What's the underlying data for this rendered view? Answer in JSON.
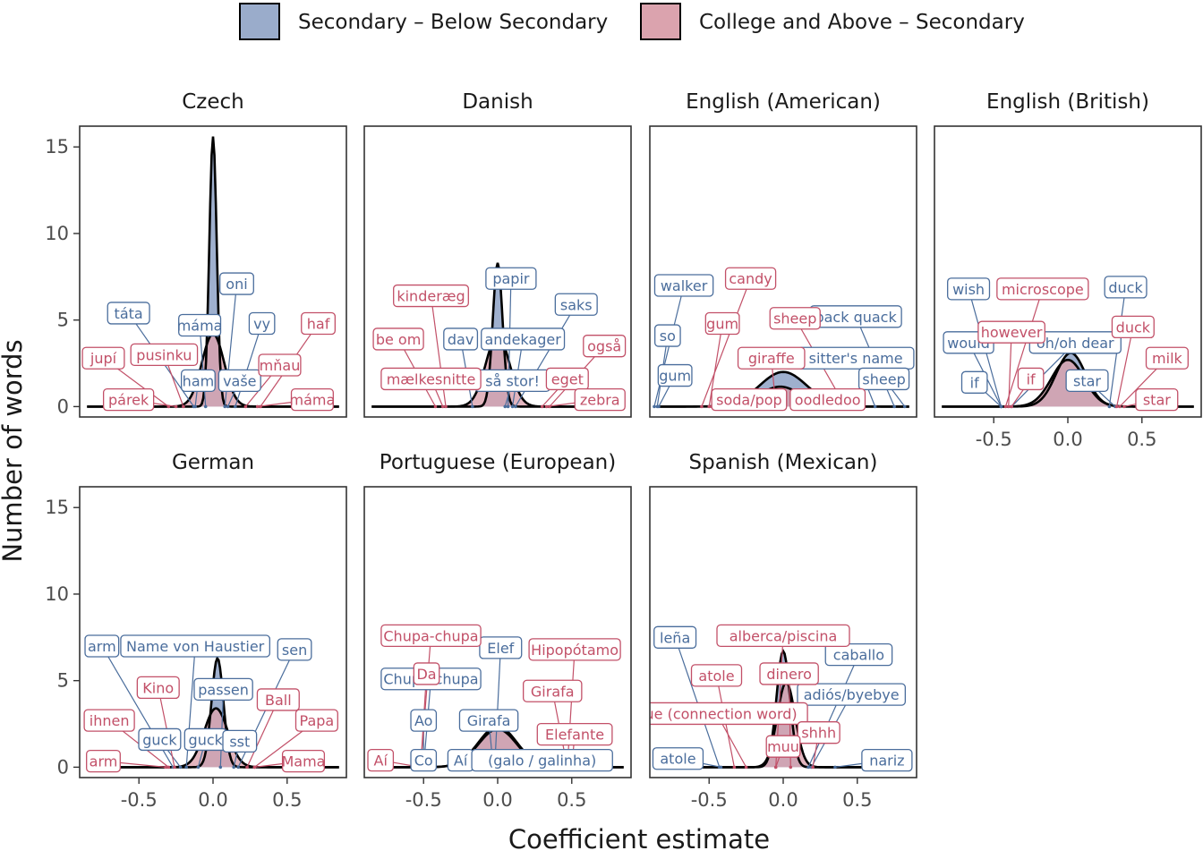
{
  "chart_data": {
    "type": "area",
    "xlabel": "Coefficient estimate",
    "ylabel": "Number of words",
    "xlim": [
      -0.9,
      0.9
    ],
    "ylim": [
      -0.6,
      16.2
    ],
    "xticks": [
      -0.5,
      0.0,
      0.5
    ],
    "xtick_labels": [
      "-0.5",
      "0.0",
      "0.5"
    ],
    "yticks": [
      0,
      5,
      10,
      15
    ],
    "ytick_labels": [
      "0",
      "5",
      "10",
      "15"
    ],
    "legend": {
      "position": "top",
      "entries": [
        {
          "label": "Secondary – Below Secondary",
          "color": "#9aaccb"
        },
        {
          "label": "College and Above – Secondary",
          "color": "#dba3ae"
        }
      ]
    },
    "colors": {
      "secondary": "#4a6d9c",
      "college": "#c25068",
      "outline": "#000000"
    },
    "panels": [
      {
        "title": "Czech",
        "series": [
          {
            "mean": 0.0,
            "sd": 0.025,
            "peak": 15.6
          },
          {
            "mean": 0.0,
            "sd": 0.075,
            "peak": 4.2
          }
        ],
        "labels": [
          {
            "text": "táta",
            "group": "secondary",
            "x": -0.57,
            "y": 5.4,
            "tx": -0.13
          },
          {
            "text": "máma",
            "group": "secondary",
            "x": -0.09,
            "y": 4.7,
            "tx": -0.05
          },
          {
            "text": "oni",
            "group": "secondary",
            "x": 0.16,
            "y": 7.1,
            "tx": 0.08
          },
          {
            "text": "vy",
            "group": "secondary",
            "x": 0.33,
            "y": 4.8,
            "tx": 0.15
          },
          {
            "text": "ham",
            "group": "secondary",
            "x": -0.1,
            "y": 1.5,
            "tx": -0.12
          },
          {
            "text": "vaše",
            "group": "secondary",
            "x": 0.18,
            "y": 1.5,
            "tx": 0.1
          },
          {
            "text": "jupí",
            "group": "college",
            "x": -0.74,
            "y": 2.8,
            "tx": -0.3
          },
          {
            "text": "pusinku",
            "group": "college",
            "x": -0.33,
            "y": 3.0,
            "tx": -0.2
          },
          {
            "text": "párek",
            "group": "college",
            "x": -0.57,
            "y": 0.4,
            "tx": -0.25
          },
          {
            "text": "haf",
            "group": "college",
            "x": 0.71,
            "y": 4.8,
            "tx": 0.32
          },
          {
            "text": "mňau",
            "group": "college",
            "x": 0.45,
            "y": 2.4,
            "tx": 0.22
          },
          {
            "text": "máma",
            "group": "college",
            "x": 0.67,
            "y": 0.4,
            "tx": 0.3
          }
        ]
      },
      {
        "title": "Danish",
        "series": [
          {
            "mean": 0.0,
            "sd": 0.033,
            "peak": 8.3
          },
          {
            "mean": 0.0,
            "sd": 0.08,
            "peak": 4.1
          }
        ],
        "labels": [
          {
            "text": "papir",
            "group": "secondary",
            "x": 0.09,
            "y": 7.4,
            "tx": 0.07
          },
          {
            "text": "saks",
            "group": "secondary",
            "x": 0.53,
            "y": 5.9,
            "tx": 0.12
          },
          {
            "text": "dav",
            "group": "secondary",
            "x": -0.25,
            "y": 3.9,
            "tx": -0.17
          },
          {
            "text": "andekager",
            "group": "secondary",
            "x": 0.17,
            "y": 3.9,
            "tx": 0.1
          },
          {
            "text": "så stor!",
            "group": "secondary",
            "x": 0.1,
            "y": 1.5,
            "tx": 0.05
          },
          {
            "text": "kinderæg",
            "group": "college",
            "x": -0.45,
            "y": 6.4,
            "tx": -0.35
          },
          {
            "text": "be om",
            "group": "college",
            "x": -0.67,
            "y": 3.9,
            "tx": -0.42
          },
          {
            "text": "mælkesnitte",
            "group": "college",
            "x": -0.45,
            "y": 1.6,
            "tx": -0.37
          },
          {
            "text": "også",
            "group": "college",
            "x": 0.72,
            "y": 3.5,
            "tx": 0.35
          },
          {
            "text": "eget",
            "group": "college",
            "x": 0.47,
            "y": 1.6,
            "tx": 0.3
          },
          {
            "text": "zebra",
            "group": "college",
            "x": 0.69,
            "y": 0.4,
            "tx": 0.33
          }
        ]
      },
      {
        "title": "English (American)",
        "series": [
          {
            "mean": 0.0,
            "sd": 0.16,
            "peak": 2.0
          },
          {
            "mean": -0.02,
            "sd": 0.14,
            "peak": 1.15
          }
        ],
        "labels": [
          {
            "text": "walker",
            "group": "secondary",
            "x": -0.67,
            "y": 7.0,
            "tx": -0.87
          },
          {
            "text": "so",
            "group": "secondary",
            "x": -0.78,
            "y": 4.1,
            "tx": -0.85
          },
          {
            "text": "gum",
            "group": "secondary",
            "x": -0.73,
            "y": 1.8,
            "tx": -0.84
          },
          {
            "text": "back quack",
            "group": "secondary",
            "x": 0.49,
            "y": 5.2,
            "tx": 0.75
          },
          {
            "text": "sitter's name",
            "group": "secondary",
            "x": 0.49,
            "y": 2.8,
            "tx": 0.62
          },
          {
            "text": "sheep",
            "group": "secondary",
            "x": 0.68,
            "y": 1.6,
            "tx": 0.82
          },
          {
            "text": "candy",
            "group": "college",
            "x": -0.22,
            "y": 7.4,
            "tx": -0.55
          },
          {
            "text": "gum",
            "group": "college",
            "x": -0.41,
            "y": 4.8,
            "tx": -0.5
          },
          {
            "text": "sheep",
            "group": "college",
            "x": 0.08,
            "y": 5.1,
            "tx": 0.42
          },
          {
            "text": "giraffe",
            "group": "college",
            "x": -0.08,
            "y": 2.8,
            "tx": -0.05
          },
          {
            "text": "soda/pop",
            "group": "college",
            "x": -0.23,
            "y": 0.4,
            "tx": -0.48
          },
          {
            "text": "oodledoo",
            "group": "college",
            "x": 0.3,
            "y": 0.4,
            "tx": 0.48
          }
        ]
      },
      {
        "title": "English (British)",
        "series": [
          {
            "mean": 0.02,
            "sd": 0.1,
            "peak": 3.1
          },
          {
            "mean": 0.0,
            "sd": 0.11,
            "peak": 2.7
          }
        ],
        "labels": [
          {
            "text": "wish",
            "group": "secondary",
            "x": -0.67,
            "y": 6.8,
            "tx": -0.45
          },
          {
            "text": "would",
            "group": "secondary",
            "x": -0.67,
            "y": 3.7,
            "tx": -0.45
          },
          {
            "text": "oh/oh dear",
            "group": "secondary",
            "x": 0.05,
            "y": 3.7,
            "tx": -0.38
          },
          {
            "text": "if",
            "group": "secondary",
            "x": -0.63,
            "y": 1.4,
            "tx": -0.45
          },
          {
            "text": "duck",
            "group": "secondary",
            "x": 0.39,
            "y": 6.9,
            "tx": 0.28
          },
          {
            "text": "star",
            "group": "secondary",
            "x": 0.13,
            "y": 1.5,
            "tx": 0.32
          },
          {
            "text": "microscope",
            "group": "college",
            "x": -0.17,
            "y": 6.8,
            "tx": -0.42
          },
          {
            "text": "however",
            "group": "college",
            "x": -0.38,
            "y": 4.3,
            "tx": -0.4
          },
          {
            "text": "if",
            "group": "college",
            "x": -0.25,
            "y": 1.6,
            "tx": -0.38
          },
          {
            "text": "duck",
            "group": "college",
            "x": 0.44,
            "y": 4.6,
            "tx": 0.33
          },
          {
            "text": "milk",
            "group": "college",
            "x": 0.67,
            "y": 2.8,
            "tx": 0.35
          },
          {
            "text": "star",
            "group": "college",
            "x": 0.6,
            "y": 0.4,
            "tx": 0.38
          }
        ]
      },
      {
        "title": "German",
        "series": [
          {
            "mean": 0.03,
            "sd": 0.04,
            "peak": 6.3
          },
          {
            "mean": 0.02,
            "sd": 0.08,
            "peak": 3.4
          }
        ],
        "labels": [
          {
            "text": "arm",
            "group": "secondary",
            "x": -0.75,
            "y": 7.0,
            "tx": -0.27
          },
          {
            "text": "Name von Haustier",
            "group": "secondary",
            "x": -0.12,
            "y": 7.0,
            "tx": -0.18
          },
          {
            "text": "sen",
            "group": "secondary",
            "x": 0.55,
            "y": 6.8,
            "tx": 0.17
          },
          {
            "text": "passen",
            "group": "secondary",
            "x": 0.07,
            "y": 4.5,
            "tx": 0.05
          },
          {
            "text": "guck",
            "group": "secondary",
            "x": -0.36,
            "y": 1.6,
            "tx": -0.22
          },
          {
            "text": "guck",
            "group": "secondary",
            "x": -0.05,
            "y": 1.6,
            "tx": -0.1
          },
          {
            "text": "sst",
            "group": "secondary",
            "x": 0.18,
            "y": 1.5,
            "tx": 0.14
          },
          {
            "text": "Kino",
            "group": "college",
            "x": -0.37,
            "y": 4.6,
            "tx": -0.26
          },
          {
            "text": "ihnen",
            "group": "college",
            "x": -0.7,
            "y": 2.7,
            "tx": -0.3
          },
          {
            "text": "arm",
            "group": "college",
            "x": -0.74,
            "y": 0.35,
            "tx": -0.32
          },
          {
            "text": "Ball",
            "group": "college",
            "x": 0.44,
            "y": 3.9,
            "tx": 0.23
          },
          {
            "text": "Papa",
            "group": "college",
            "x": 0.7,
            "y": 2.7,
            "tx": 0.28
          },
          {
            "text": "Mama",
            "group": "college",
            "x": 0.61,
            "y": 0.35,
            "tx": 0.28
          }
        ]
      },
      {
        "title": "Portuguese (European)",
        "series": [
          {
            "mean": 0.0,
            "sd": 0.13,
            "peak": 2.35
          },
          {
            "mean": 0.0,
            "sd": 0.13,
            "peak": 2.2
          }
        ],
        "labels": [
          {
            "text": "Elef",
            "group": "secondary",
            "x": 0.02,
            "y": 6.9,
            "tx": -0.02
          },
          {
            "text": "Chupa-chupa",
            "group": "secondary",
            "x": -0.45,
            "y": 5.1,
            "tx": -0.5
          },
          {
            "text": "Ao",
            "group": "secondary",
            "x": -0.5,
            "y": 2.7,
            "tx": -0.5
          },
          {
            "text": "Girafa",
            "group": "secondary",
            "x": -0.06,
            "y": 2.7,
            "tx": -0.03
          },
          {
            "text": "Co",
            "group": "secondary",
            "x": -0.5,
            "y": 0.4,
            "tx": -0.5
          },
          {
            "text": "Aí",
            "group": "secondary",
            "x": -0.25,
            "y": 0.4,
            "tx": -0.3
          },
          {
            "text": "(galo / galinha)",
            "group": "secondary",
            "x": 0.3,
            "y": 0.4,
            "tx": 0.45
          },
          {
            "text": "Chupa-chupa",
            "group": "college",
            "x": -0.45,
            "y": 7.6,
            "tx": -0.52
          },
          {
            "text": "Da",
            "group": "college",
            "x": -0.48,
            "y": 5.4,
            "tx": -0.52
          },
          {
            "text": "Hipopótamo",
            "group": "college",
            "x": 0.52,
            "y": 6.8,
            "tx": 0.47
          },
          {
            "text": "Girafa",
            "group": "college",
            "x": 0.37,
            "y": 4.4,
            "tx": 0.47
          },
          {
            "text": "Elefante",
            "group": "college",
            "x": 0.52,
            "y": 1.9,
            "tx": 0.5
          },
          {
            "text": "Aí",
            "group": "college",
            "x": -0.79,
            "y": 0.4,
            "tx": -0.52
          }
        ]
      },
      {
        "title": "Spanish (Mexican)",
        "series": [
          {
            "mean": 0.0,
            "sd": 0.045,
            "peak": 6.7
          },
          {
            "mean": 0.02,
            "sd": 0.06,
            "peak": 4.9
          }
        ],
        "labels": [
          {
            "text": "leña",
            "group": "secondary",
            "x": -0.73,
            "y": 7.5,
            "tx": -0.43
          },
          {
            "text": "caballo",
            "group": "secondary",
            "x": 0.51,
            "y": 6.5,
            "tx": 0.17
          },
          {
            "text": "adiós/byebye",
            "group": "secondary",
            "x": 0.46,
            "y": 4.2,
            "tx": 0.19
          },
          {
            "text": "atole",
            "group": "secondary",
            "x": -0.71,
            "y": 0.5,
            "tx": -0.42
          },
          {
            "text": "nariz",
            "group": "secondary",
            "x": 0.7,
            "y": 0.4,
            "tx": 0.35
          },
          {
            "text": "alberca/piscina",
            "group": "college",
            "x": 0.0,
            "y": 7.6,
            "tx": -0.05
          },
          {
            "text": "atole",
            "group": "college",
            "x": -0.45,
            "y": 5.3,
            "tx": -0.33
          },
          {
            "text": "dinero",
            "group": "college",
            "x": 0.04,
            "y": 5.4,
            "tx": 0.05
          },
          {
            "text": "que (connection word)",
            "group": "college",
            "x": -0.45,
            "y": 3.1,
            "tx": -0.25
          },
          {
            "text": "shhh",
            "group": "college",
            "x": 0.24,
            "y": 2.0,
            "tx": 0.2
          },
          {
            "text": "muu",
            "group": "college",
            "x": 0.0,
            "y": 1.2,
            "tx": -0.05
          }
        ]
      }
    ]
  }
}
